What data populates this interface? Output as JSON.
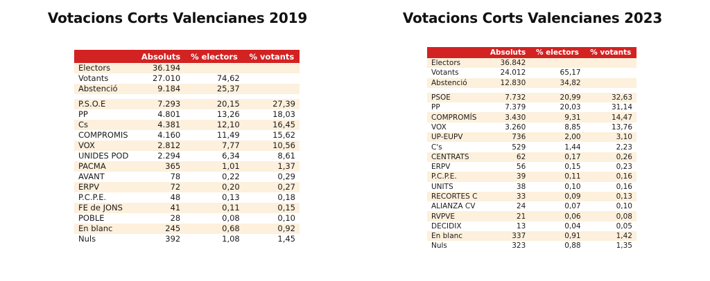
{
  "left": {
    "title": "Votacions Corts Valencianes 2019",
    "headers": [
      "",
      "Absoluts",
      "% electors",
      "% votants"
    ],
    "summary": [
      [
        "Electors",
        "36.194",
        "",
        ""
      ],
      [
        "Votants",
        "27.010",
        "74,62",
        ""
      ],
      [
        "Abstenció",
        "9.184",
        "25,37",
        ""
      ]
    ],
    "parties": [
      [
        "P.S.O.E",
        "7.293",
        "20,15",
        "27,39"
      ],
      [
        "PP",
        "4.801",
        "13,26",
        "18,03"
      ],
      [
        "Cs",
        "4.381",
        "12,10",
        "16,45"
      ],
      [
        "COMPROMIS",
        "4.160",
        "11,49",
        "15,62"
      ],
      [
        "VOX",
        "2.812",
        "7,77",
        "10,56"
      ],
      [
        "UNIDES POD",
        "2.294",
        "6,34",
        "8,61"
      ],
      [
        "PACMA",
        "365",
        "1,01",
        "1,37"
      ],
      [
        "AVANT",
        "78",
        "0,22",
        "0,29"
      ],
      [
        "ERPV",
        "72",
        "0,20",
        "0,27"
      ],
      [
        "P.C.P.E.",
        "48",
        "0,13",
        "0,18"
      ],
      [
        "FE de JONS",
        "41",
        "0,11",
        "0,15"
      ],
      [
        "POBLE",
        "28",
        "0,08",
        "0,10"
      ],
      [
        "En blanc",
        "245",
        "0,68",
        "0,92"
      ],
      [
        "Nuls",
        "392",
        "1,08",
        "1,45"
      ]
    ]
  },
  "right": {
    "title": "Votacions Corts Valencianes 2023",
    "headers": [
      "",
      "Absoluts",
      "% electors",
      "% votants"
    ],
    "summary": [
      [
        "Electors",
        "36.842",
        "",
        ""
      ],
      [
        "Votants",
        "24.012",
        "65,17",
        ""
      ],
      [
        "Abstenció",
        "12.830",
        "34,82",
        ""
      ]
    ],
    "parties": [
      [
        "PSOE",
        "7.732",
        "20,99",
        "32,63"
      ],
      [
        "PP",
        "7.379",
        "20,03",
        "31,14"
      ],
      [
        "COMPROMÍS",
        "3.430",
        "9,31",
        "14,47"
      ],
      [
        "VOX",
        "3.260",
        "8,85",
        "13,76"
      ],
      [
        "UP-EUPV",
        "736",
        "2,00",
        "3,10"
      ],
      [
        "C's",
        "529",
        "1,44",
        "2,23"
      ],
      [
        "CENTRATS",
        "62",
        "0,17",
        "0,26"
      ],
      [
        "ERPV",
        "56",
        "0,15",
        "0,23"
      ],
      [
        "P.C.P.E.",
        "39",
        "0,11",
        "0,16"
      ],
      [
        "UNITS",
        "38",
        "0,10",
        "0,16"
      ],
      [
        "RECORTES C",
        "33",
        "0,09",
        "0,13"
      ],
      [
        "ALIANZA CV",
        "24",
        "0,07",
        "0,10"
      ],
      [
        "RVPVE",
        "21",
        "0,06",
        "0,08"
      ],
      [
        "DECIDIX",
        "13",
        "0,04",
        "0,05"
      ],
      [
        "En blanc",
        "337",
        "0,91",
        "1,42"
      ],
      [
        "Nuls",
        "323",
        "0,88",
        "1,35"
      ]
    ]
  }
}
